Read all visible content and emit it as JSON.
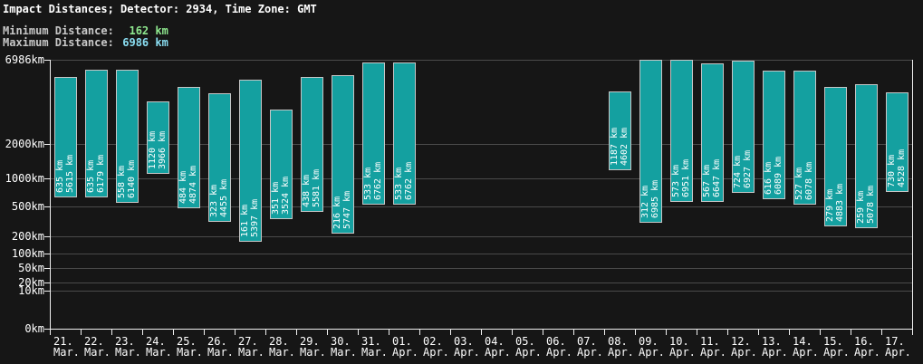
{
  "header": {
    "title": "Impact Distances; Detector: 2934, Time Zone: GMT",
    "min_label": "Minimum Distance:",
    "min_value": "162 km",
    "max_label": "Maximum Distance:",
    "max_value": "6986 km"
  },
  "colors": {
    "background": "#161616",
    "bar_fill": "#14a0a0",
    "bar_border": "#c6c6c6",
    "grid": "#4a4a4a",
    "axis": "#f0f0f0",
    "text": "#ffffff",
    "stat_label": "#c8c8c8",
    "min_value": "#8fe88f",
    "max_value": "#8adef2"
  },
  "chart_data": {
    "type": "bar",
    "subtype": "floating-range-bars",
    "title": "Impact Distances; Detector: 2934, Time Zone: GMT",
    "xlabel": "",
    "ylabel": "",
    "yscale": "power-0.3",
    "ylim": [
      0,
      6986
    ],
    "y_ticks": [
      6986,
      2000,
      1000,
      500,
      200,
      100,
      50,
      20,
      10,
      0
    ],
    "y_tick_suffix": "km",
    "grid": true,
    "legend": false,
    "unit": "km",
    "bars": [
      {
        "date": "21. Mar.",
        "min": 635,
        "max": 5615
      },
      {
        "date": "22. Mar.",
        "min": 635,
        "max": 6179
      },
      {
        "date": "23. Mar.",
        "min": 558,
        "max": 6140
      },
      {
        "date": "24. Mar.",
        "min": 1120,
        "max": 3966
      },
      {
        "date": "25. Mar.",
        "min": 484,
        "max": 4874
      },
      {
        "date": "26. Mar.",
        "min": 323,
        "max": 4455
      },
      {
        "date": "27. Mar.",
        "min": 161,
        "max": 5397
      },
      {
        "date": "28. Mar.",
        "min": 351,
        "max": 3524
      },
      {
        "date": "29. Mar.",
        "min": 438,
        "max": 5581
      },
      {
        "date": "30. Mar.",
        "min": 216,
        "max": 5747
      },
      {
        "date": "31. Mar.",
        "min": 533,
        "max": 6762
      },
      {
        "date": "01. Apr.",
        "min": 533,
        "max": 6762
      },
      {
        "date": "02. Apr.",
        "min": null,
        "max": null
      },
      {
        "date": "03. Apr.",
        "min": null,
        "max": null
      },
      {
        "date": "04. Apr.",
        "min": null,
        "max": null
      },
      {
        "date": "05. Apr.",
        "min": null,
        "max": null
      },
      {
        "date": "06. Apr.",
        "min": null,
        "max": null
      },
      {
        "date": "07. Apr.",
        "min": null,
        "max": null
      },
      {
        "date": "08. Apr.",
        "min": 1187,
        "max": 4602
      },
      {
        "date": "09. Apr.",
        "min": 312,
        "max": 6985
      },
      {
        "date": "10. Apr.",
        "min": 573,
        "max": 6951
      },
      {
        "date": "11. Apr.",
        "min": 567,
        "max": 6647
      },
      {
        "date": "12. Apr.",
        "min": 724,
        "max": 6927
      },
      {
        "date": "13. Apr.",
        "min": 616,
        "max": 6089
      },
      {
        "date": "14. Apr.",
        "min": 527,
        "max": 6078
      },
      {
        "date": "15. Apr.",
        "min": 279,
        "max": 4883
      },
      {
        "date": "16. Apr.",
        "min": 259,
        "max": 5078
      },
      {
        "date": "17. Apr.",
        "min": 730,
        "max": 4528
      }
    ]
  }
}
